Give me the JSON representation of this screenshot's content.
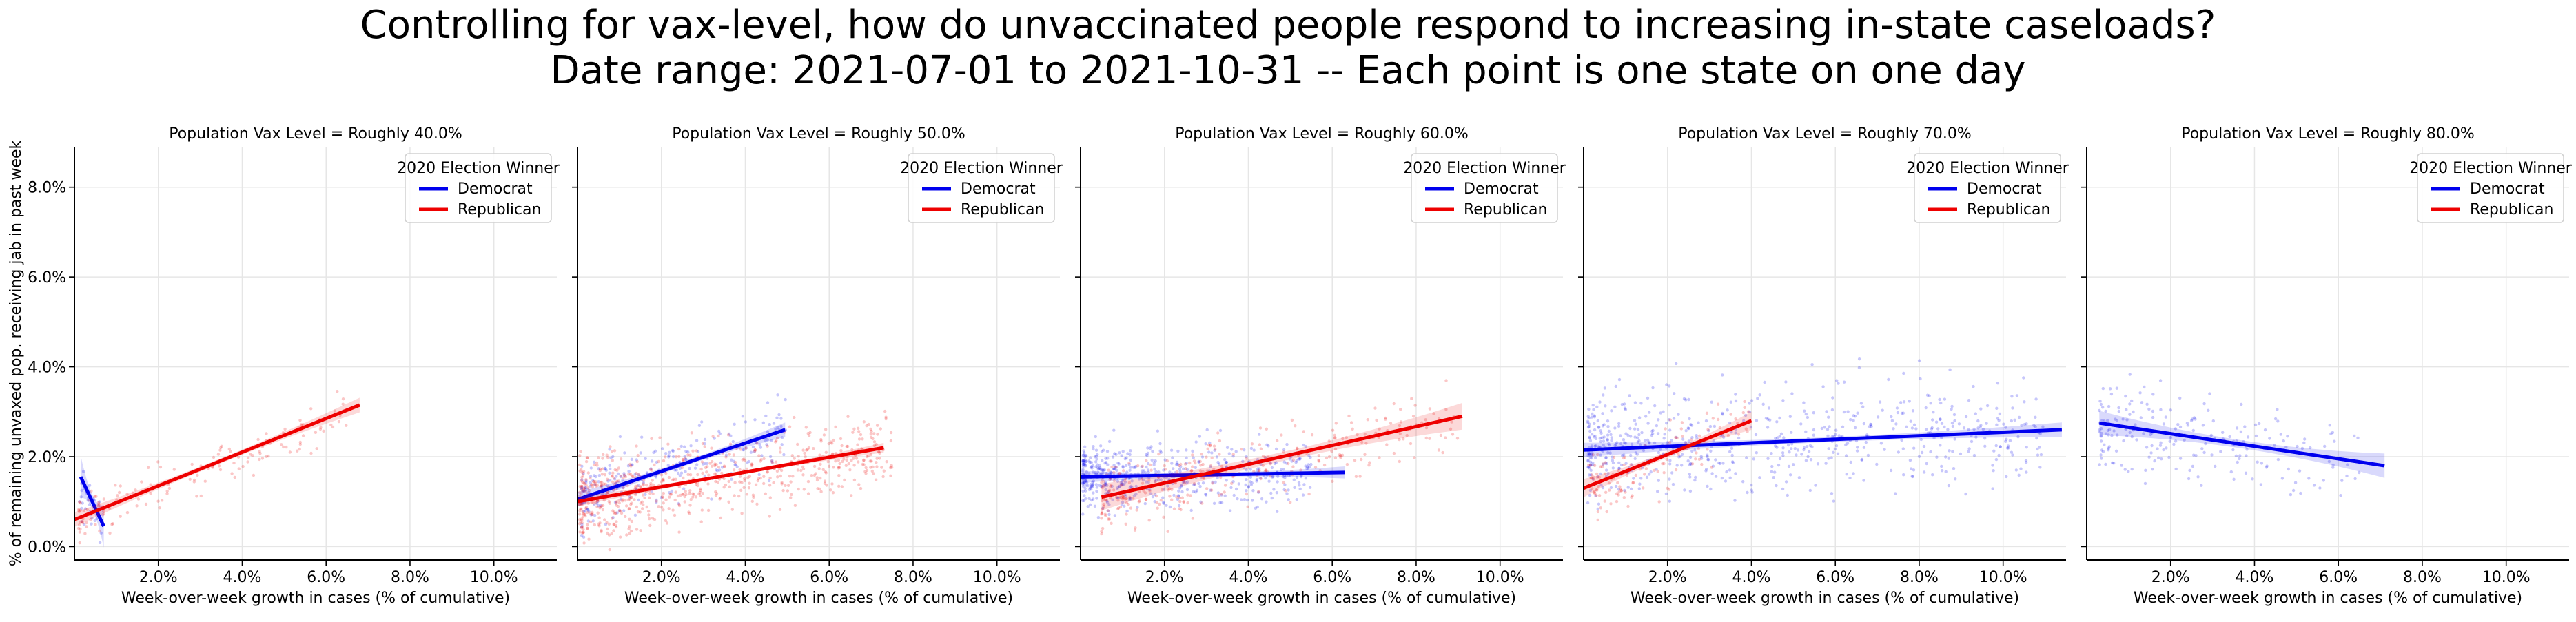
{
  "figure": {
    "title_line1": "Controlling for vax-level, how do unvaccinated people respond to increasing in-state caseloads?",
    "title_line2": "Date range: 2021-07-01 to 2021-10-31 -- Each point is one state on one day"
  },
  "chart_data": {
    "type": "scatter",
    "shared_ylabel": "% of remaining unvaxed pop. receiving jab in past week",
    "shared_xlabel": "Week-over-week growth in cases (% of cumulative)",
    "xlim": [
      0,
      11.5
    ],
    "ylim": [
      -0.3,
      8.9
    ],
    "xticks": [
      2,
      4,
      6,
      8,
      10
    ],
    "yticks": [
      0,
      2,
      4,
      6,
      8
    ],
    "xtick_labels": [
      "2.0%",
      "4.0%",
      "6.0%",
      "8.0%",
      "10.0%"
    ],
    "ytick_labels": [
      "0.0%",
      "2.0%",
      "4.0%",
      "6.0%",
      "8.0%"
    ],
    "grid": true,
    "legend": {
      "title": "2020 Election Winner",
      "placement": "top-right",
      "entries": [
        {
          "name": "Democrat",
          "color": "#0000ee"
        },
        {
          "name": "Republican",
          "color": "#ee0000"
        }
      ]
    },
    "colors": {
      "Democrat": "#0000ee",
      "Republican": "#ee0000"
    },
    "panels": [
      {
        "title": "Population Vax Level = Roughly 40.0%",
        "series": [
          {
            "name": "Democrat",
            "fit": {
              "x": [
                0.15,
                0.7
              ],
              "y": [
                1.55,
                0.45
              ]
            },
            "ci": 0.35,
            "cloud": {
              "n": 30,
              "x_range": [
                0.1,
                0.8
              ],
              "y_center": 1.1,
              "y_spread": 0.6,
              "slope": -1.0
            }
          },
          {
            "name": "Republican",
            "fit": {
              "x": [
                0.0,
                6.8
              ],
              "y": [
                0.6,
                3.15
              ]
            },
            "ci": 0.12,
            "cloud": {
              "n": 150,
              "x_range": [
                0.1,
                6.5
              ],
              "y_center": 0.6,
              "y_spread": 0.5,
              "slope": 0.37
            }
          }
        ]
      },
      {
        "title": "Population Vax Level = Roughly 50.0%",
        "series": [
          {
            "name": "Democrat",
            "fit": {
              "x": [
                0.0,
                4.95
              ],
              "y": [
                1.05,
                2.6
              ]
            },
            "ci": 0.12,
            "cloud": {
              "n": 260,
              "x_range": [
                0.1,
                5.0
              ],
              "y_center": 1.1,
              "y_spread": 0.8,
              "slope": 0.31
            }
          },
          {
            "name": "Republican",
            "fit": {
              "x": [
                0.0,
                7.3
              ],
              "y": [
                1.0,
                2.2
              ]
            },
            "ci": 0.08,
            "cloud": {
              "n": 720,
              "x_range": [
                0.05,
                7.5
              ],
              "y_center": 1.0,
              "y_spread": 0.9,
              "slope": 0.16
            }
          }
        ]
      },
      {
        "title": "Population Vax Level = Roughly 60.0%",
        "series": [
          {
            "name": "Democrat",
            "fit": {
              "x": [
                0.0,
                6.3
              ],
              "y": [
                1.55,
                1.65
              ]
            },
            "ci": 0.1,
            "cloud": {
              "n": 560,
              "x_range": [
                0.05,
                5.5
              ],
              "y_center": 1.55,
              "y_spread": 0.7,
              "slope": 0.02
            }
          },
          {
            "name": "Republican",
            "fit": {
              "x": [
                0.5,
                9.1
              ],
              "y": [
                1.1,
                2.9
              ]
            },
            "ci": 0.22,
            "cloud": {
              "n": 340,
              "x_range": [
                0.5,
                9.0
              ],
              "y_center": 1.05,
              "y_spread": 0.8,
              "slope": 0.21
            }
          }
        ]
      },
      {
        "title": "Population Vax Level = Roughly 70.0%",
        "series": [
          {
            "name": "Democrat",
            "fit": {
              "x": [
                0.0,
                11.4
              ],
              "y": [
                2.15,
                2.6
              ]
            },
            "ci": 0.12,
            "cloud": {
              "n": 700,
              "x_range": [
                0.1,
                11.0
              ],
              "y_center": 2.2,
              "y_spread": 1.2,
              "slope": 0.04
            }
          },
          {
            "name": "Republican",
            "fit": {
              "x": [
                0.0,
                4.0
              ],
              "y": [
                1.3,
                2.8
              ]
            },
            "ci": 0.15,
            "cloud": {
              "n": 130,
              "x_range": [
                0.1,
                4.0
              ],
              "y_center": 1.3,
              "y_spread": 0.7,
              "slope": 0.37
            }
          }
        ]
      },
      {
        "title": "Population Vax Level = Roughly 80.0%",
        "series": [
          {
            "name": "Democrat",
            "fit": {
              "x": [
                0.3,
                7.1
              ],
              "y": [
                2.75,
                1.8
              ]
            },
            "ci": 0.2,
            "cloud": {
              "n": 230,
              "x_range": [
                0.3,
                6.5
              ],
              "y_center": 2.7,
              "y_spread": 1.0,
              "slope": -0.14
            }
          }
        ]
      }
    ]
  }
}
